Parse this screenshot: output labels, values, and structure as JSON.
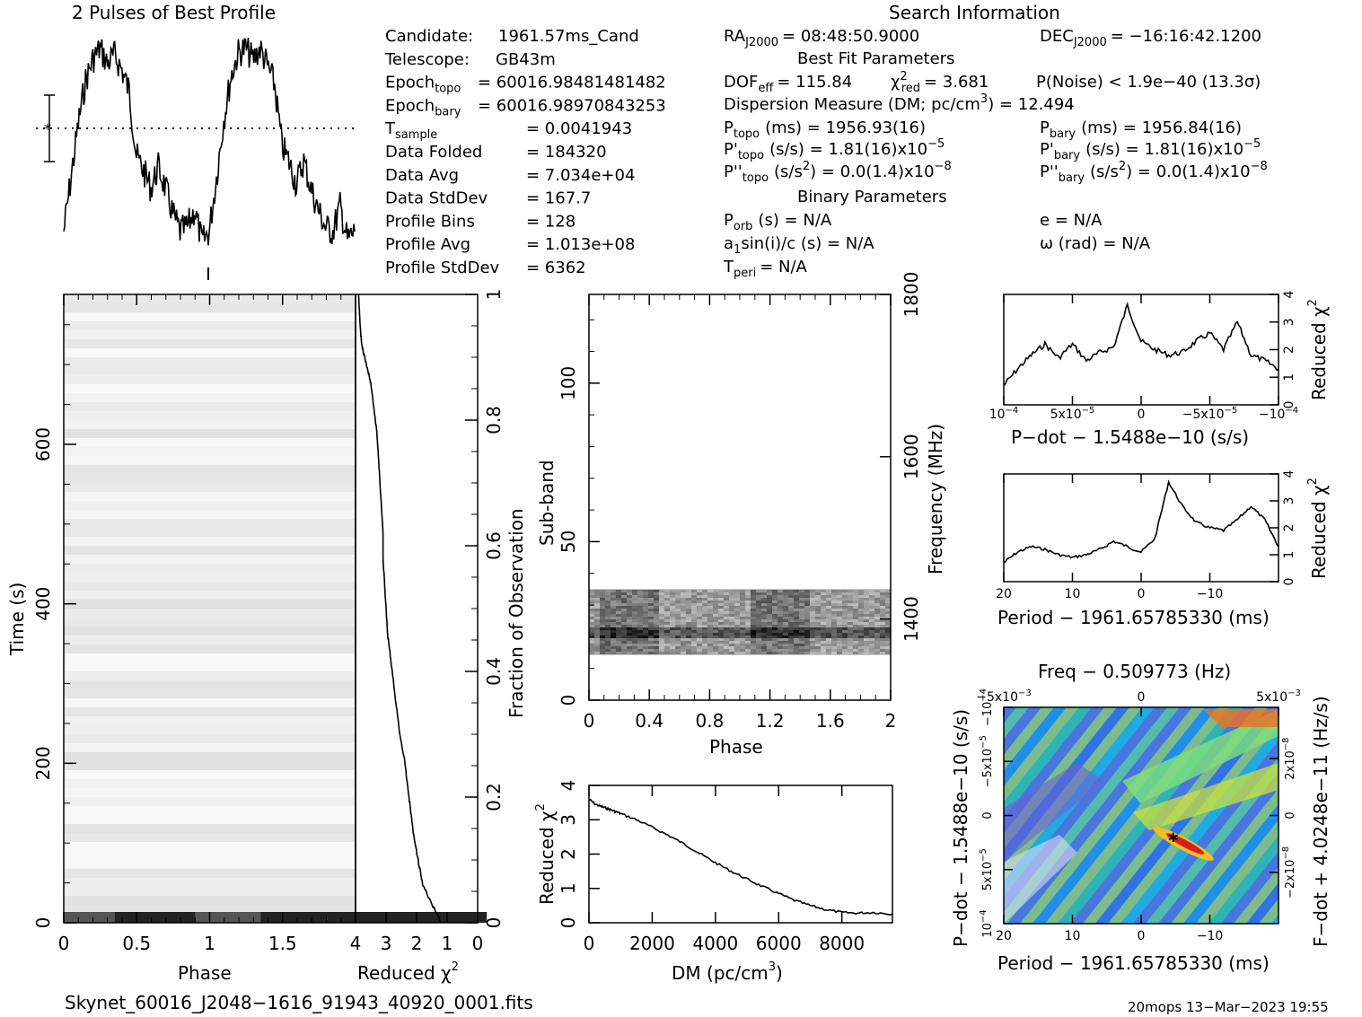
{
  "header": {
    "profile_title": "2 Pulses of Best Profile",
    "search_title": "Search Information",
    "filename": "Skynet_60016_J2048−1616_91943_40920_0001.fits",
    "footer_stamp": "20mops 13−Mar−2023 19:55"
  },
  "info_left": [
    {
      "label": "Candidate:",
      "value": "1961.57ms_Cand"
    },
    {
      "label": "Telescope:",
      "value": "GB43m"
    },
    {
      "label": "Epoch",
      "sub": "topo",
      "value": "= 60016.98481481482"
    },
    {
      "label": "Epoch",
      "sub": "bary",
      "value": "= 60016.98970843253"
    },
    {
      "label": "T",
      "sub": "sample",
      "value": "=  0.0041943"
    },
    {
      "label": "Data Folded",
      "value": "=  184320"
    },
    {
      "label": "Data Avg",
      "value": "=  7.034e+04"
    },
    {
      "label": "Data StdDev",
      "value": "=  167.7"
    },
    {
      "label": "Profile Bins",
      "value": "=  128"
    },
    {
      "label": "Profile Avg",
      "value": "=  1.013e+08"
    },
    {
      "label": "Profile StdDev",
      "value": "=  6362"
    }
  ],
  "info_mid": {
    "ra": "RA",
    "ra_sub": "J2000",
    "ra_val": "= 08:48:50.9000",
    "dec": "DEC",
    "dec_sub": "J2000",
    "dec_val": "= −16:16:42.1200",
    "best_fit_title": "Best Fit Parameters",
    "dof": "DOF",
    "dof_sub": "eff",
    "dof_val": "= 115.84",
    "chi": "χ",
    "chi_sup": "2",
    "chi_sub": "red",
    "chi_val": "= 3.681",
    "pnoise": "P(Noise) < 1.9e−40   (13.3σ)",
    "dm_line": "Dispersion Measure (DM; pc/cm",
    "dm_sup": "3",
    "dm_val": ") = 12.494",
    "ptopo": "P",
    "ptopo_sub": "topo",
    "ptopo_val": "(ms) =  1956.93(16)",
    "pbary": "P",
    "pbary_sub": "bary",
    "pbary_val": "(ms) =  1956.84(16)",
    "pdtopo": "P'",
    "pdtopo_sub": "topo",
    "pdtopo_val": "(s/s) =  1.81(16)x10",
    "pdtopo_exp": "−5",
    "pdbary": "P'",
    "pdbary_sub": "bary",
    "pdbary_val": "(s/s) =  1.81(16)x10",
    "pdbary_exp": "−5",
    "pddtopo": "P''",
    "pddtopo_sub": "topo",
    "pddtopo_val": "(s/s",
    "pddtopo_sup": "2",
    "pddtopo_val2": ") = 0.0(1.4)x10",
    "pddtopo_exp": "−8",
    "pddbary": "P''",
    "pddbary_sub": "bary",
    "pddbary_val": "(s/s",
    "pddbary_sup": "2",
    "pddbary_val2": ") = 0.0(1.4)x10",
    "pddbary_exp": "−8",
    "binary_title": "Binary Parameters",
    "porb": "P",
    "porb_sub": "orb",
    "porb_val": "(s) = N/A",
    "ecc": "e = N/A",
    "a1": "a",
    "a1_sub": "1",
    "a1_val": "sin(i)/c (s) = N/A",
    "omega": "ω (rad) = N/A",
    "tperi": "T",
    "tperi_sub": "peri",
    "tperi_val": "= N/A"
  },
  "axes": {
    "phase": "Phase",
    "time": "Time (s)",
    "redchi": "Reduced χ",
    "redchi_sup": "2",
    "frac_obs": "Fraction of Observation",
    "subband": "Sub-band",
    "frequency": "Frequency (MHz)",
    "dm": "DM (pc/cm",
    "dm_sup": "3",
    "dm_close": ")",
    "pdot_x": "P−dot − 1.5488e−10 (s/s)",
    "period_x": "Period − 1961.65785330 (ms)",
    "freq_top": "Freq − 0.509773 (Hz)",
    "pdot_y": "P−dot − 1.5488e−10 (s/s)",
    "fdot_y": "F−dot + 4.0248e−11 (Hz/s)"
  },
  "ticks": {
    "phase_main": [
      "0",
      "0.5",
      "1",
      "1.5"
    ],
    "time": [
      "0",
      "200",
      "400",
      "600"
    ],
    "chi_horiz": [
      "4",
      "3",
      "2",
      "1",
      "0"
    ],
    "frac": [
      "0",
      "0.2",
      "0.4",
      "0.6",
      "0.8",
      "1"
    ],
    "sub_phase": [
      "0",
      "0.4",
      "0.8",
      "1.2",
      "1.6",
      "2"
    ],
    "subband": [
      "0",
      "50",
      "100"
    ],
    "freq": [
      "1400",
      "1600",
      "1800"
    ],
    "dm": [
      "0",
      "2000",
      "4000",
      "6000",
      "8000"
    ],
    "dmchi": [
      "0",
      "1",
      "2",
      "3",
      "4"
    ],
    "pdot_x": [
      "10",
      "5x10",
      "0",
      "−5x10",
      "−10"
    ],
    "pdot_x_exp": [
      "−4",
      "−5",
      "",
      "−5",
      "−4"
    ],
    "period_x": [
      "20",
      "10",
      "0",
      "−10"
    ],
    "small_chi": [
      "0",
      "1",
      "2",
      "3",
      "4"
    ],
    "freq_top": [
      "−5x10",
      "0",
      "5x10"
    ],
    "freq_top_exp": [
      "−3",
      "",
      "−3"
    ],
    "pdot_y": [
      "10",
      "5x10",
      "0",
      "−5x10",
      "−10"
    ],
    "pdot_y_exp": [
      "−4",
      "−5",
      "",
      "−5",
      "−4"
    ],
    "fdot_y": [
      "−2x10",
      "0",
      "2x10"
    ],
    "fdot_y_exp": [
      "−8",
      "",
      "−8"
    ]
  },
  "chart_data": [
    {
      "type": "line",
      "name_key": "profile",
      "title": "2 Pulses of Best Profile",
      "xlim": [
        0,
        2
      ],
      "x": [
        0.0,
        0.05,
        0.1,
        0.15,
        0.2,
        0.25,
        0.3,
        0.35,
        0.4,
        0.45,
        0.5,
        0.55,
        0.6,
        0.65,
        0.7,
        0.75,
        0.8,
        0.85,
        0.9,
        0.95,
        1.0,
        1.05,
        1.1,
        1.15,
        1.2,
        1.25,
        1.3,
        1.35,
        1.4,
        1.45,
        1.5,
        1.55,
        1.6,
        1.65,
        1.7,
        1.75,
        1.8,
        1.85,
        1.9,
        1.95,
        2.0
      ],
      "y": [
        0.1,
        0.35,
        0.6,
        0.8,
        0.9,
        0.95,
        0.88,
        0.92,
        0.85,
        0.75,
        0.45,
        0.38,
        0.3,
        0.4,
        0.3,
        0.18,
        0.1,
        0.12,
        0.2,
        0.05,
        0.1,
        0.35,
        0.62,
        0.82,
        0.93,
        0.95,
        0.9,
        0.95,
        0.87,
        0.78,
        0.5,
        0.42,
        0.32,
        0.43,
        0.3,
        0.2,
        0.12,
        0.1,
        0.22,
        0.06,
        0.1
      ]
    },
    {
      "type": "line",
      "name_key": "time_chi",
      "xlabel": "Reduced χ²",
      "ylabel": "Fraction of Observation",
      "xlim": [
        4,
        0
      ],
      "ylim": [
        0,
        1
      ],
      "x": [
        1.2,
        1.5,
        1.8,
        1.95,
        2.1,
        2.2,
        2.3,
        2.4,
        2.55,
        2.65,
        2.75,
        2.85,
        2.95,
        3.0,
        3.05,
        3.1,
        3.1,
        3.15,
        3.2,
        3.25,
        3.3,
        3.4,
        3.5,
        3.6,
        3.7,
        3.8,
        3.85,
        3.9
      ],
      "y": [
        0.0,
        0.03,
        0.06,
        0.1,
        0.14,
        0.18,
        0.22,
        0.26,
        0.3,
        0.34,
        0.38,
        0.42,
        0.46,
        0.5,
        0.54,
        0.58,
        0.62,
        0.66,
        0.7,
        0.74,
        0.78,
        0.82,
        0.86,
        0.88,
        0.9,
        0.92,
        0.95,
        1.0
      ]
    },
    {
      "type": "line",
      "name_key": "dm_curve",
      "xlabel": "DM (pc/cm³)",
      "ylabel": "Reduced χ²",
      "xlim": [
        0,
        9600
      ],
      "ylim": [
        0,
        4
      ],
      "x": [
        0,
        200,
        400,
        600,
        800,
        1000,
        1500,
        2000,
        2500,
        3000,
        3500,
        4000,
        4500,
        5000,
        5500,
        6000,
        6500,
        7000,
        7500,
        8000,
        8500,
        9000,
        9600
      ],
      "y": [
        3.6,
        3.45,
        3.38,
        3.32,
        3.25,
        3.18,
        3.0,
        2.78,
        2.55,
        2.3,
        2.02,
        1.75,
        1.5,
        1.27,
        1.05,
        0.85,
        0.65,
        0.5,
        0.38,
        0.3,
        0.28,
        0.3,
        0.25
      ]
    },
    {
      "type": "line",
      "name_key": "pdot_chi",
      "xlabel": "P−dot − 1.5488e−10 (s/s)",
      "ylabel": "Reduced χ²",
      "xlim": [
        0.0001,
        -0.0001
      ],
      "ylim": [
        0,
        4
      ],
      "x": [
        0.0001,
        9e-05,
        8e-05,
        7e-05,
        6e-05,
        5e-05,
        4e-05,
        3e-05,
        2e-05,
        1e-05,
        0.0,
        -1e-05,
        -2e-05,
        -3e-05,
        -4e-05,
        -5e-05,
        -6e-05,
        -7e-05,
        -8e-05,
        -9e-05,
        -0.0001
      ],
      "y": [
        0.7,
        1.3,
        1.8,
        2.2,
        1.7,
        2.2,
        1.6,
        1.9,
        2.1,
        3.6,
        2.3,
        2.0,
        1.8,
        1.9,
        2.3,
        2.6,
        2.0,
        3.0,
        1.8,
        1.6,
        1.3
      ]
    },
    {
      "type": "line",
      "name_key": "period_chi",
      "xlabel": "Period − 1961.65785330 (ms)",
      "ylabel": "Reduced χ²",
      "xlim": [
        20,
        -20
      ],
      "ylim": [
        0,
        4
      ],
      "x": [
        20,
        18,
        16,
        14,
        12,
        10,
        8,
        6,
        4,
        2,
        0,
        -2,
        -4,
        -6,
        -8,
        -10,
        -12,
        -14,
        -16,
        -18,
        -20
      ],
      "y": [
        0.7,
        1.1,
        1.3,
        1.2,
        1.0,
        0.9,
        1.0,
        1.2,
        1.5,
        1.3,
        1.1,
        1.6,
        3.7,
        2.8,
        2.2,
        2.0,
        1.9,
        2.3,
        2.8,
        2.3,
        1.3
      ]
    }
  ]
}
